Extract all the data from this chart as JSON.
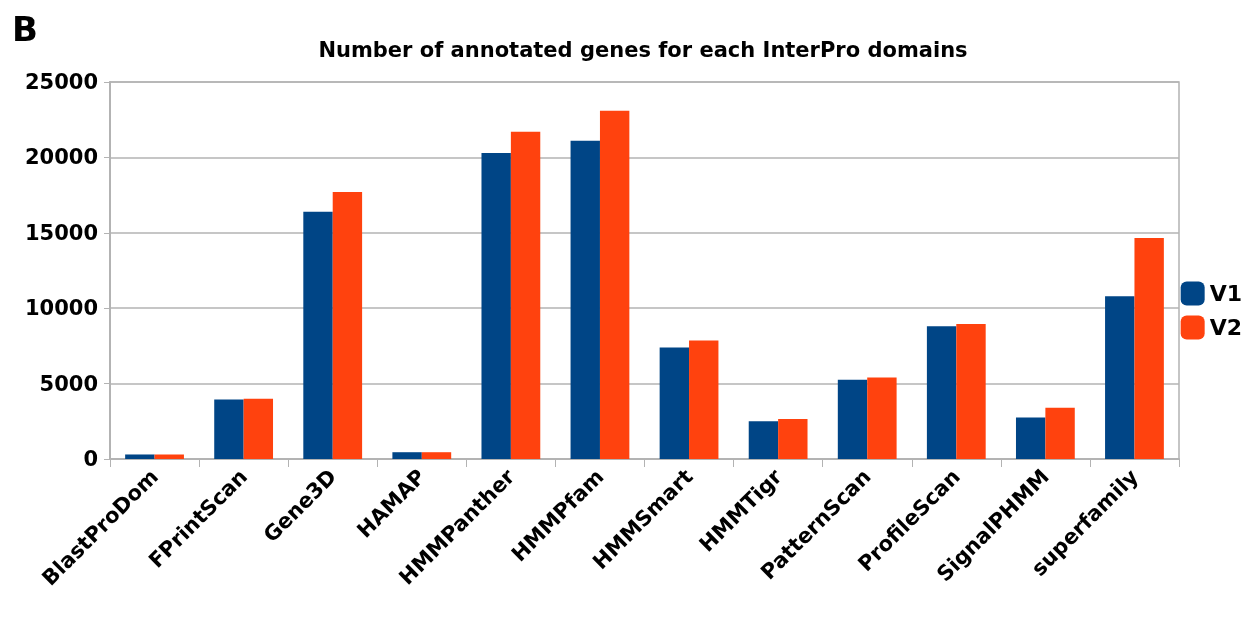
{
  "chart_data": {
    "type": "bar",
    "title": "Number of annotated genes for each InterPro domains",
    "annotations": [
      "B"
    ],
    "categories": [
      "BlastProDom",
      "FPrintScan",
      "Gene3D",
      "HAMAP",
      "HMMPanther",
      "HMMPfam",
      "HMMSmart",
      "HMMTigr",
      "PatternScan",
      "ProfileScan",
      "SignalPHMM",
      "superfamily"
    ],
    "series": [
      {
        "name": "V1",
        "color": "#004586",
        "values": [
          300,
          3950,
          16400,
          450,
          20300,
          21100,
          7400,
          2500,
          5250,
          8800,
          2750,
          10800
        ]
      },
      {
        "name": "V2",
        "color": "#ff420e",
        "values": [
          300,
          4000,
          17700,
          450,
          21700,
          23100,
          7850,
          2650,
          5400,
          8950,
          3400,
          14650
        ]
      }
    ],
    "ylim": [
      0,
      25000
    ],
    "yticks": [
      0,
      5000,
      10000,
      15000,
      20000,
      25000
    ],
    "grid": "y",
    "legend": "right"
  }
}
